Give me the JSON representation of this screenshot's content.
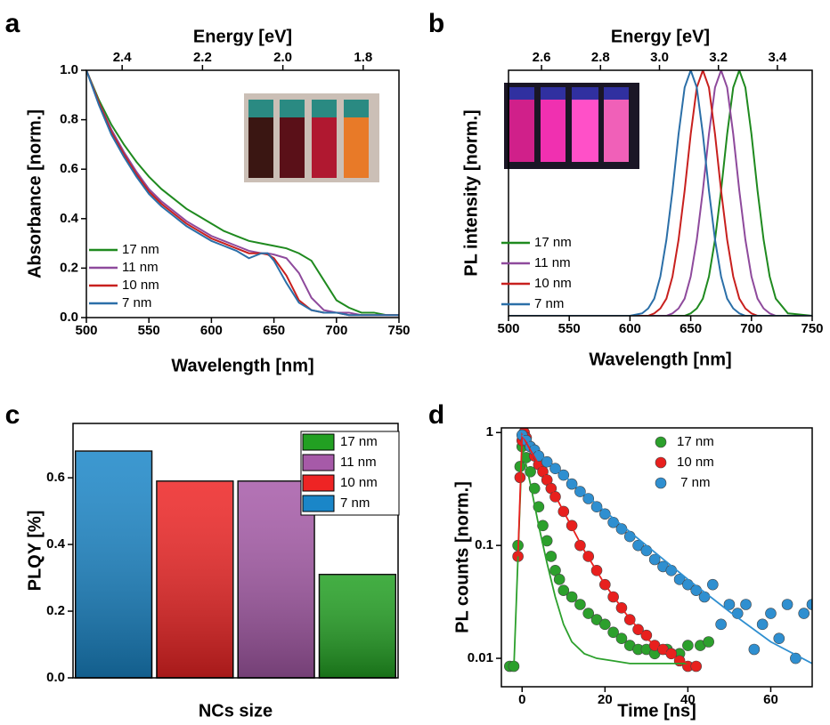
{
  "chart_data": [
    {
      "type": "line",
      "panel_label": "a",
      "x2label": "Energy [eV]",
      "xlabel": "Wavelength [nm]",
      "ylabel": "Absorbance [norm.]",
      "xlim": [
        500,
        750
      ],
      "xticks": [
        500,
        550,
        600,
        650,
        700,
        750
      ],
      "ylim": [
        0,
        1
      ],
      "yticks": [
        {
          "value": 0,
          "label": "0.0"
        },
        0.2,
        0.4,
        0.6,
        0.8,
        {
          "value": 1,
          "label": "1.0"
        }
      ],
      "x2lim": [
        2.489,
        1.711
      ],
      "x2ticks": [
        2.4,
        2.2,
        {
          "value": 2,
          "label": "2.0"
        },
        1.8
      ],
      "x": [
        500,
        510,
        520,
        530,
        540,
        550,
        560,
        570,
        580,
        590,
        600,
        610,
        620,
        630,
        640,
        645,
        650,
        660,
        670,
        680,
        690,
        700,
        710,
        720,
        730,
        740,
        750
      ],
      "series": [
        {
          "name": "17 nm",
          "color": "#1f8a1f",
          "values": [
            1.0,
            0.88,
            0.78,
            0.7,
            0.63,
            0.57,
            0.52,
            0.48,
            0.44,
            0.41,
            0.38,
            0.35,
            0.33,
            0.31,
            0.3,
            0.295,
            0.29,
            0.28,
            0.26,
            0.23,
            0.15,
            0.07,
            0.04,
            0.02,
            0.02,
            0.01,
            0.01
          ]
        },
        {
          "name": "11 nm",
          "color": "#8e4a9c",
          "values": [
            1.0,
            0.87,
            0.76,
            0.67,
            0.59,
            0.52,
            0.47,
            0.43,
            0.39,
            0.36,
            0.33,
            0.31,
            0.29,
            0.27,
            0.26,
            0.26,
            0.255,
            0.24,
            0.18,
            0.08,
            0.03,
            0.02,
            0.02,
            0.01,
            0.01,
            0.01,
            0.01
          ]
        },
        {
          "name": "10 nm",
          "color": "#c8201e",
          "values": [
            1.0,
            0.87,
            0.75,
            0.66,
            0.58,
            0.51,
            0.46,
            0.42,
            0.38,
            0.35,
            0.32,
            0.3,
            0.28,
            0.26,
            0.26,
            0.255,
            0.24,
            0.17,
            0.07,
            0.03,
            0.02,
            0.02,
            0.01,
            0.01,
            0.01,
            0.01,
            0.01
          ]
        },
        {
          "name": "7 nm",
          "color": "#2b6fa8",
          "values": [
            1.0,
            0.86,
            0.74,
            0.65,
            0.57,
            0.5,
            0.45,
            0.41,
            0.37,
            0.34,
            0.31,
            0.29,
            0.27,
            0.24,
            0.26,
            0.26,
            0.23,
            0.14,
            0.06,
            0.03,
            0.02,
            0.02,
            0.01,
            0.01,
            0.01,
            0.01,
            0.01
          ]
        }
      ]
    },
    {
      "type": "line",
      "panel_label": "b",
      "x2label": "Energy [eV]",
      "xlabel": "Wavelength [nm]",
      "ylabel": "PL intensity [norm.]",
      "xlim": [
        500,
        750
      ],
      "xticks": [
        500,
        550,
        600,
        650,
        700,
        750
      ],
      "ylim": [
        0,
        1
      ],
      "x2lim": [
        2.488,
        3.518
      ],
      "x2ticks": [
        2.6,
        2.8,
        {
          "value": 3,
          "label": "3.0"
        },
        3.2,
        3.4
      ],
      "x": [
        500,
        550,
        600,
        610,
        615,
        620,
        625,
        630,
        635,
        640,
        645,
        650,
        655,
        660,
        665,
        670,
        675,
        680,
        685,
        690,
        695,
        700,
        705,
        710,
        715,
        720,
        730,
        750
      ],
      "series": [
        {
          "name": "17 nm",
          "color": "#1f8a1f",
          "values": [
            0,
            0,
            0,
            0,
            0,
            0,
            0,
            0,
            0,
            0,
            0,
            0.01,
            0.03,
            0.07,
            0.16,
            0.31,
            0.51,
            0.74,
            0.93,
            1,
            0.93,
            0.74,
            0.51,
            0.31,
            0.16,
            0.07,
            0.01,
            0
          ]
        },
        {
          "name": "11 nm",
          "color": "#8e4a9c",
          "values": [
            0,
            0,
            0,
            0,
            0,
            0,
            0,
            0,
            0.01,
            0.03,
            0.07,
            0.16,
            0.31,
            0.51,
            0.74,
            0.93,
            1,
            0.93,
            0.74,
            0.51,
            0.31,
            0.16,
            0.07,
            0.03,
            0.01,
            0,
            0,
            0
          ]
        },
        {
          "name": "10 nm",
          "color": "#c8201e",
          "values": [
            0,
            0,
            0,
            0,
            0,
            0.01,
            0.03,
            0.07,
            0.16,
            0.31,
            0.51,
            0.74,
            0.93,
            1,
            0.93,
            0.74,
            0.51,
            0.31,
            0.16,
            0.07,
            0.03,
            0.01,
            0,
            0,
            0,
            0,
            0,
            0
          ]
        },
        {
          "name": "7 nm",
          "color": "#2b6fa8",
          "values": [
            0,
            0,
            0,
            0.01,
            0.03,
            0.07,
            0.16,
            0.31,
            0.51,
            0.74,
            0.93,
            1,
            0.93,
            0.74,
            0.51,
            0.31,
            0.16,
            0.07,
            0.03,
            0.01,
            0,
            0,
            0,
            0,
            0,
            0,
            0,
            0
          ]
        }
      ]
    },
    {
      "type": "bar",
      "panel_label": "c",
      "xlabel": "NCs size",
      "ylabel": "PLQY [%]",
      "categories": [
        null,
        null,
        null,
        null
      ],
      "ylim": [
        0,
        0.763
      ],
      "yticks": [
        {
          "value": 0,
          "label": "0.0"
        },
        0.2,
        0.4,
        0.6
      ],
      "series": [
        {
          "name": "17 nm",
          "color": "#22a022",
          "values": [
            null,
            null,
            null,
            0.31
          ]
        },
        {
          "name": "11 nm",
          "color": "#a65aa8",
          "values": [
            null,
            null,
            0.59,
            null
          ]
        },
        {
          "name": "10 nm",
          "color": "#ee2424",
          "values": [
            null,
            0.59,
            null,
            null
          ]
        },
        {
          "name": "7 nm",
          "color": "#1a86c8",
          "values": [
            0.68,
            null,
            null,
            null
          ]
        }
      ]
    },
    {
      "type": "scatter",
      "panel_label": "d",
      "xlabel": "Time [ns]",
      "ylabel": "PL counts [norm.]",
      "xlim": [
        -5,
        70
      ],
      "xticks": [
        0,
        20,
        40,
        60
      ],
      "log_y": true,
      "ylim": [
        0.0056,
        1.1
      ],
      "yticks": [
        1,
        0.1,
        0.01
      ],
      "series": [
        {
          "name": "17 nm",
          "color": "#2ca02c",
          "x": [
            -3,
            -2,
            -1,
            -0.5,
            0,
            1,
            2,
            3,
            4,
            5,
            6,
            7,
            8,
            9,
            10,
            12,
            14,
            16,
            18,
            20,
            22,
            24,
            26,
            28,
            30,
            32,
            35,
            38,
            40,
            43,
            45
          ],
          "values": [
            0.0085,
            0.0085,
            0.1,
            0.5,
            0.75,
            0.6,
            0.45,
            0.32,
            0.22,
            0.15,
            0.11,
            0.08,
            0.06,
            0.05,
            0.04,
            0.035,
            0.03,
            0.025,
            0.022,
            0.02,
            0.017,
            0.015,
            0.013,
            0.012,
            0.012,
            0.011,
            0.012,
            0.011,
            0.013,
            0.013,
            0.014
          ],
          "fit_x": [
            -2,
            0,
            2,
            4,
            6,
            8,
            10,
            12,
            15,
            18,
            22,
            26,
            30,
            40
          ],
          "fit_values": [
            0.008,
            0.75,
            0.35,
            0.15,
            0.07,
            0.035,
            0.02,
            0.014,
            0.011,
            0.01,
            0.0095,
            0.009,
            0.009,
            0.009
          ]
        },
        {
          "name": "10 nm",
          "color": "#e8201e",
          "x": [
            -1,
            -0.5,
            0,
            0.5,
            1,
            2,
            3,
            4,
            5,
            6,
            7,
            8,
            10,
            12,
            14,
            16,
            18,
            20,
            22,
            24,
            26,
            28,
            30,
            32,
            34,
            36,
            38,
            40,
            42
          ],
          "values": [
            0.08,
            0.4,
            0.85,
            1,
            0.9,
            0.75,
            0.62,
            0.52,
            0.45,
            0.38,
            0.32,
            0.27,
            0.2,
            0.15,
            0.1,
            0.08,
            0.06,
            0.045,
            0.035,
            0.028,
            0.022,
            0.018,
            0.016,
            0.013,
            0.012,
            0.011,
            0.0095,
            0.0085,
            0.0085
          ],
          "fit_x": [
            -1,
            0,
            2,
            5,
            10,
            15,
            20,
            25,
            30,
            35,
            40
          ],
          "fit_values": [
            0.08,
            0.95,
            0.7,
            0.45,
            0.2,
            0.09,
            0.045,
            0.025,
            0.015,
            0.011,
            0.009
          ]
        },
        {
          "name": " 7 nm",
          "color": "#2f8fd0",
          "x": [
            0,
            1,
            2,
            3,
            4,
            6,
            8,
            10,
            12,
            14,
            16,
            18,
            20,
            22,
            24,
            26,
            28,
            30,
            32,
            34,
            36,
            38,
            40,
            42,
            44,
            46,
            48,
            50,
            52,
            54,
            56,
            58,
            60,
            62,
            64,
            66,
            68,
            70
          ],
          "values": [
            0.95,
            0.85,
            0.75,
            0.7,
            0.62,
            0.55,
            0.48,
            0.42,
            0.35,
            0.3,
            0.26,
            0.22,
            0.19,
            0.16,
            0.14,
            0.12,
            0.1,
            0.09,
            0.075,
            0.065,
            0.06,
            0.05,
            0.045,
            0.04,
            0.035,
            0.045,
            0.02,
            0.03,
            0.025,
            0.03,
            0.012,
            0.02,
            0.025,
            0.015,
            0.03,
            0.01,
            0.025,
            0.03
          ],
          "fit_x": [
            0,
            5,
            10,
            20,
            30,
            40,
            50,
            60,
            70
          ],
          "fit_values": [
            0.95,
            0.6,
            0.42,
            0.2,
            0.1,
            0.05,
            0.026,
            0.014,
            0.009
          ]
        }
      ]
    }
  ]
}
